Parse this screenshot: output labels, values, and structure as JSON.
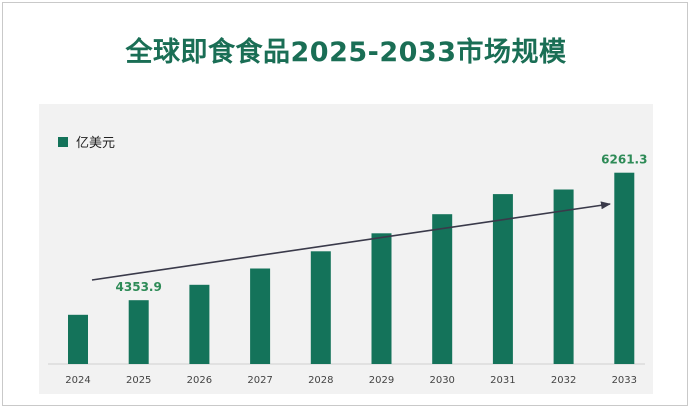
{
  "chart_data": {
    "type": "bar",
    "title": "全球即食食品2025-2033市场规模",
    "categories": [
      "2024",
      "2025",
      "2026",
      "2027",
      "2028",
      "2029",
      "2030",
      "2031",
      "2032",
      "2033"
    ],
    "series": [
      {
        "name": "亿美元",
        "values": [
          4135.0,
          4353.9,
          4585.0,
          4828.0,
          5085.0,
          5355.0,
          5640.0,
          5940.0,
          6010.0,
          6261.3
        ],
        "color": "#14735a"
      }
    ],
    "data_labels": [
      {
        "category": "2025",
        "text": "4353.9"
      },
      {
        "category": "2033",
        "text": "6261.3"
      }
    ],
    "ylim": [
      3400,
      6600
    ],
    "grid": false,
    "legend_position": "top-left",
    "trend_arrow": true,
    "label_color": "#2e8b57"
  }
}
